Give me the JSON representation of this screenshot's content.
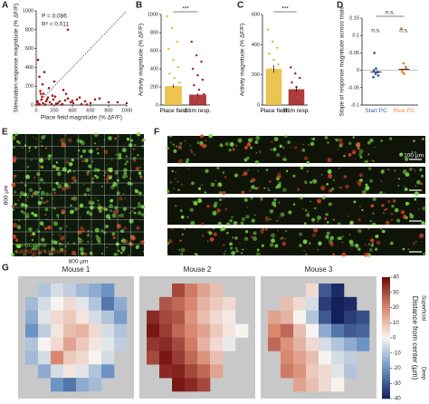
{
  "panels": {
    "A": {
      "label": "A",
      "type": "scatter",
      "annotations": [
        "P = 0.086",
        "R² = 0.011"
      ],
      "xlabel": "Place field magnitude (% ΔF/F)",
      "ylabel": "Stimulation response magnitude (% ΔF/F)",
      "xlim": [
        0,
        1000
      ],
      "ylim": [
        0,
        1000
      ],
      "xticks": [
        0,
        200,
        400,
        600,
        800,
        1000
      ],
      "yticks": [
        0,
        200,
        400,
        600,
        800,
        1000
      ],
      "color": "#a01818",
      "x": [
        20,
        35,
        50,
        60,
        75,
        90,
        110,
        130,
        150,
        170,
        190,
        210,
        240,
        260,
        290,
        320,
        350,
        380,
        410,
        450,
        500,
        540,
        600,
        650,
        700,
        800,
        900,
        1000,
        30,
        45,
        70,
        100,
        140,
        180,
        220,
        280,
        330,
        400,
        480,
        560,
        15,
        25,
        80,
        120,
        200,
        300,
        350,
        10,
        40,
        65
      ],
      "y": [
        480,
        300,
        120,
        60,
        20,
        350,
        40,
        80,
        30,
        10,
        60,
        90,
        20,
        40,
        10,
        50,
        70,
        30,
        20,
        60,
        10,
        40,
        20,
        60,
        70,
        30,
        30,
        20,
        10,
        150,
        220,
        5,
        180,
        100,
        15,
        5,
        120,
        45,
        80,
        5,
        40,
        10,
        120,
        60,
        250,
        160,
        800,
        30,
        5,
        90
      ]
    },
    "B": {
      "label": "B",
      "type": "bar",
      "ylabel": "Activity magnitude (% ΔF/F)",
      "categories": [
        "Place field",
        "Stim resp."
      ],
      "colors": [
        "#e8b830",
        "#a01818"
      ],
      "values": [
        210,
        115
      ],
      "errors": [
        20,
        15
      ],
      "significance": "***",
      "points": [
        [
          980,
          850,
          700,
          620,
          500,
          420,
          350,
          300,
          250,
          200,
          150,
          100,
          60
        ],
        [
          700,
          550,
          480,
          400,
          330,
          280,
          220,
          170,
          120,
          80,
          40
        ]
      ],
      "ylim": [
        0,
        1000
      ],
      "yticks": [
        0,
        200,
        400,
        600,
        800,
        1000
      ]
    },
    "C": {
      "label": "C",
      "type": "bar",
      "ylabel": "Activity magnitude (% ΔF/F)",
      "categories": [
        "Place field",
        "Stim resp."
      ],
      "colors": [
        "#e8b830",
        "#a01818"
      ],
      "values": [
        240,
        105
      ],
      "errors": [
        25,
        15
      ],
      "significance": "***",
      "points": [
        [
          500,
          420,
          380,
          340,
          300,
          270,
          240,
          210,
          180,
          150,
          120
        ],
        [
          250,
          210,
          180,
          150,
          120,
          90,
          70,
          50,
          30
        ]
      ],
      "ylim": [
        0,
        600
      ],
      "yticks": [
        0,
        200,
        400,
        600
      ]
    },
    "D": {
      "label": "D",
      "type": "dot",
      "ylabel": "Slope of response magnitude across trials",
      "categories": [
        "Start PC",
        "Rew PC"
      ],
      "colors": [
        "#3b5fb0",
        "#e58a3a"
      ],
      "values": [
        -0.005,
        0.003
      ],
      "significance": "n.s.",
      "point_labels": [
        "n.s.",
        "n.s."
      ],
      "points": [
        [
          -0.02,
          -0.01,
          -0.005,
          0,
          0.005,
          -0.015,
          0.05
        ],
        [
          0.12,
          0.02,
          0.01,
          0,
          -0.01,
          0.005,
          -0.005
        ]
      ],
      "ylim": [
        -0.1,
        0.15
      ],
      "yticks": [
        -0.1,
        -0.05,
        0,
        0.05,
        0.1,
        0.15
      ]
    },
    "E": {
      "label": "E",
      "side_label": "800 µm",
      "bottom_label": "800 µm",
      "legend": [
        "syn-GCaMP6f",
        "CaMKII-C1V1-mCherry"
      ]
    },
    "F": {
      "label": "F",
      "scale_label": "100 µm"
    },
    "G": {
      "label": "G",
      "colorbar_label": "Distance from center (µm)",
      "up_label": "Superficial",
      "down_label": "Deep",
      "clim": [
        -40,
        40
      ],
      "ticks": [
        40,
        30,
        20,
        10,
        0,
        -10,
        -20,
        -30,
        -40
      ],
      "maps": [
        {
          "title": "Mouse 1",
          "values": [
            [
              null,
              -10,
              -5,
              -8,
              -12,
              -15,
              -20,
              null
            ],
            [
              -12,
              -5,
              0,
              5,
              -3,
              -10,
              -25,
              -15
            ],
            [
              -15,
              -3,
              5,
              8,
              3,
              -5,
              -10,
              -18
            ],
            [
              -20,
              -8,
              3,
              10,
              12,
              5,
              -5,
              -10
            ],
            [
              -10,
              0,
              5,
              15,
              8,
              3,
              -3,
              -8
            ],
            [
              -12,
              -5,
              20,
              8,
              5,
              0,
              -5,
              null
            ],
            [
              null,
              -15,
              -5,
              3,
              -3,
              -10,
              -20,
              null
            ],
            [
              null,
              null,
              -20,
              -25,
              -15,
              -12,
              null,
              null
            ]
          ]
        },
        {
          "title": "Mouse 2",
          "values": [
            [
              null,
              null,
              30,
              22,
              15,
              10,
              null,
              null
            ],
            [
              null,
              28,
              25,
              20,
              12,
              8,
              5,
              null
            ],
            [
              35,
              30,
              28,
              18,
              10,
              5,
              2,
              null
            ],
            [
              38,
              32,
              25,
              20,
              15,
              8,
              3,
              0
            ],
            [
              33,
              35,
              30,
              22,
              12,
              5,
              -2,
              null
            ],
            [
              30,
              38,
              32,
              25,
              18,
              10,
              null,
              null
            ],
            [
              null,
              35,
              36,
              30,
              25,
              15,
              null,
              null
            ],
            [
              null,
              null,
              38,
              35,
              30,
              null,
              null,
              null
            ]
          ]
        },
        {
          "title": "Mouse 3",
          "values": [
            [
              null,
              null,
              null,
              5,
              -30,
              -38,
              null,
              null
            ],
            [
              null,
              10,
              5,
              -5,
              -35,
              -40,
              -38,
              null
            ],
            [
              15,
              12,
              0,
              -10,
              -30,
              -40,
              -35,
              -32
            ],
            [
              20,
              25,
              10,
              0,
              -15,
              -25,
              -30,
              -28
            ],
            [
              25,
              18,
              12,
              5,
              -5,
              -10,
              -15,
              -20
            ],
            [
              null,
              20,
              15,
              10,
              0,
              -5,
              -8,
              null
            ],
            [
              null,
              22,
              18,
              8,
              5,
              -3,
              -10,
              null
            ],
            [
              null,
              null,
              15,
              10,
              5,
              0,
              null,
              null
            ]
          ]
        }
      ]
    }
  }
}
